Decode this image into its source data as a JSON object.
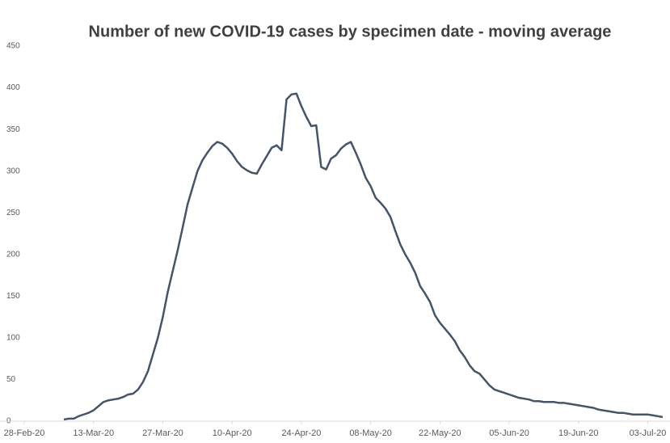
{
  "chart_data": {
    "type": "line",
    "title": "Number of new COVID-19 cases by specimen date -  moving average",
    "x": [
      "2020-03-07",
      "2020-03-08",
      "2020-03-09",
      "2020-03-10",
      "2020-03-11",
      "2020-03-12",
      "2020-03-13",
      "2020-03-14",
      "2020-03-15",
      "2020-03-16",
      "2020-03-17",
      "2020-03-18",
      "2020-03-19",
      "2020-03-20",
      "2020-03-21",
      "2020-03-22",
      "2020-03-23",
      "2020-03-24",
      "2020-03-25",
      "2020-03-26",
      "2020-03-27",
      "2020-03-28",
      "2020-03-29",
      "2020-03-30",
      "2020-03-31",
      "2020-04-01",
      "2020-04-02",
      "2020-04-03",
      "2020-04-04",
      "2020-04-05",
      "2020-04-06",
      "2020-04-07",
      "2020-04-08",
      "2020-04-09",
      "2020-04-10",
      "2020-04-11",
      "2020-04-12",
      "2020-04-13",
      "2020-04-14",
      "2020-04-15",
      "2020-04-16",
      "2020-04-17",
      "2020-04-18",
      "2020-04-19",
      "2020-04-20",
      "2020-04-21",
      "2020-04-22",
      "2020-04-23",
      "2020-04-24",
      "2020-04-25",
      "2020-04-26",
      "2020-04-27",
      "2020-04-28",
      "2020-04-29",
      "2020-04-30",
      "2020-05-01",
      "2020-05-02",
      "2020-05-03",
      "2020-05-04",
      "2020-05-05",
      "2020-05-06",
      "2020-05-07",
      "2020-05-08",
      "2020-05-09",
      "2020-05-10",
      "2020-05-11",
      "2020-05-12",
      "2020-05-13",
      "2020-05-14",
      "2020-05-15",
      "2020-05-16",
      "2020-05-17",
      "2020-05-18",
      "2020-05-19",
      "2020-05-20",
      "2020-05-21",
      "2020-05-22",
      "2020-05-23",
      "2020-05-24",
      "2020-05-25",
      "2020-05-26",
      "2020-05-27",
      "2020-05-28",
      "2020-05-29",
      "2020-05-30",
      "2020-05-31",
      "2020-06-01",
      "2020-06-02",
      "2020-06-03",
      "2020-06-04",
      "2020-06-05",
      "2020-06-06",
      "2020-06-07",
      "2020-06-08",
      "2020-06-09",
      "2020-06-10",
      "2020-06-11",
      "2020-06-12",
      "2020-06-13",
      "2020-06-14",
      "2020-06-15",
      "2020-06-16",
      "2020-06-17",
      "2020-06-18",
      "2020-06-19",
      "2020-06-20",
      "2020-06-21",
      "2020-06-22",
      "2020-06-23",
      "2020-06-24",
      "2020-06-25",
      "2020-06-26",
      "2020-06-27",
      "2020-06-28",
      "2020-06-29",
      "2020-06-30",
      "2020-07-01",
      "2020-07-02",
      "2020-07-03",
      "2020-07-04",
      "2020-07-05",
      "2020-07-06"
    ],
    "series": [
      {
        "name": "Moving average",
        "color": "#44546a",
        "values": [
          2,
          3,
          3,
          6,
          8,
          10,
          13,
          18,
          23,
          25,
          26,
          27,
          29,
          32,
          33,
          38,
          47,
          60,
          80,
          100,
          125,
          155,
          180,
          205,
          232,
          260,
          280,
          300,
          313,
          322,
          330,
          335,
          333,
          328,
          321,
          312,
          305,
          301,
          298,
          297,
          308,
          318,
          328,
          331,
          325,
          386,
          392,
          393,
          378,
          365,
          354,
          355,
          305,
          302,
          315,
          319,
          327,
          332,
          335,
          322,
          308,
          292,
          282,
          268,
          262,
          255,
          245,
          228,
          212,
          200,
          190,
          178,
          162,
          153,
          143,
          127,
          118,
          111,
          104,
          96,
          85,
          77,
          67,
          60,
          57,
          50,
          43,
          38,
          36,
          34,
          32,
          30,
          28,
          27,
          26,
          24,
          24,
          23,
          23,
          23,
          22,
          22,
          21,
          20,
          19,
          18,
          17,
          16,
          14,
          13,
          12,
          11,
          10,
          10,
          9,
          8,
          8,
          8,
          8,
          7,
          6,
          5
        ]
      }
    ],
    "xlim": [
      "2020-02-28",
      "2020-07-07"
    ],
    "xticks": [
      {
        "value": "2020-02-28",
        "label": "28-Feb-20"
      },
      {
        "value": "2020-03-13",
        "label": "13-Mar-20"
      },
      {
        "value": "2020-03-27",
        "label": "27-Mar-20"
      },
      {
        "value": "2020-04-10",
        "label": "10-Apr-20"
      },
      {
        "value": "2020-04-24",
        "label": "24-Apr-20"
      },
      {
        "value": "2020-05-08",
        "label": "08-May-20"
      },
      {
        "value": "2020-05-22",
        "label": "22-May-20"
      },
      {
        "value": "2020-06-05",
        "label": "05-Jun-20"
      },
      {
        "value": "2020-06-19",
        "label": "19-Jun-20"
      },
      {
        "value": "2020-07-03",
        "label": "03-Jul-20"
      }
    ],
    "ylim": [
      0,
      450
    ],
    "yticks": [
      0,
      50,
      100,
      150,
      200,
      250,
      300,
      350,
      400,
      450
    ],
    "grid": false
  }
}
